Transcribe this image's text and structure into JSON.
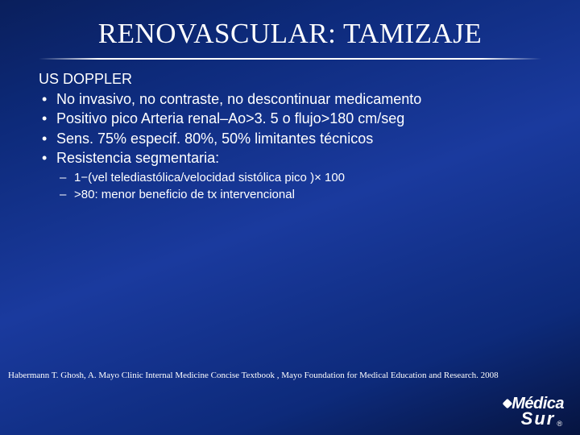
{
  "slide": {
    "background_gradient": [
      "#0a1f5c",
      "#0d2a7a",
      "#1a3a9e",
      "#0d2a7a",
      "#061440"
    ],
    "text_color": "#ffffff"
  },
  "title": {
    "text": "RENOVASCULAR: TAMIZAJE",
    "font_family": "Times New Roman",
    "font_size_pt": 26
  },
  "content": {
    "heading": "US DOPPLER",
    "bullets": [
      "No invasivo,  no contraste, no descontinuar medicamento",
      "Positivo pico Arteria  renal–Ao>3. 5 o  flujo>180 cm/seg",
      "Sens. 75% especif. 80%,  50%  limitantes  técnicos",
      "Resistencia  segmentaria:"
    ],
    "subbullets": [
      "1−(vel telediastólica/velocidad sistólica  pico )× 100",
      ">80: menor beneficio de tx  intervencional"
    ],
    "bullet_font_size_pt": 14,
    "sub_font_size_pt": 11
  },
  "citation": {
    "text": "Habermann T. Ghosh, A.  Mayo Clinic Internal Medicine Concise Textbook , Mayo Foundation for Medical Education and Research. 2008",
    "font_size_pt": 8
  },
  "logo": {
    "line1": "Médica",
    "line2": "Sur",
    "registered": "®"
  }
}
